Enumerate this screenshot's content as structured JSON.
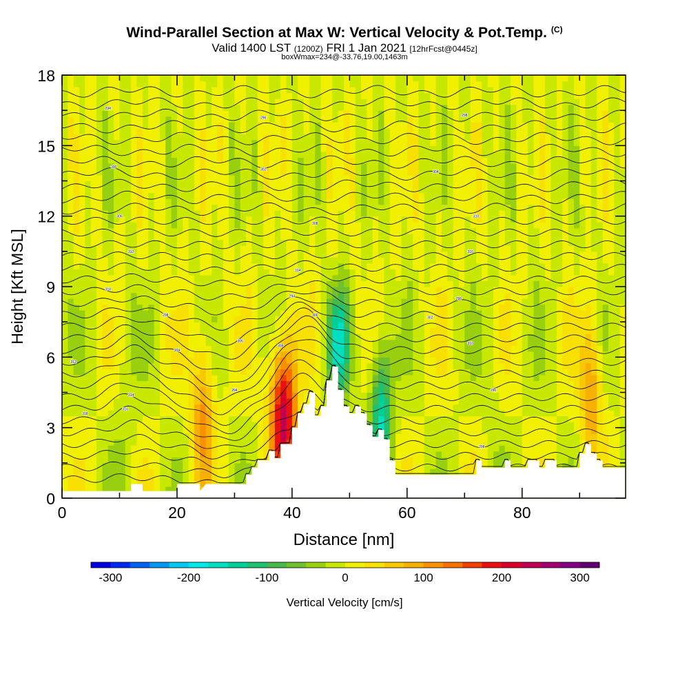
{
  "chart_data": {
    "type": "heatmap",
    "title": "Wind-Parallel Section at Max W: Vertical Velocity & Pot.Temp.",
    "title_mark": "(C)",
    "subtitle_main": "Valid 1400 LST",
    "subtitle_utc": "(1200Z)",
    "subtitle_date": "FRI 1 Jan 2021",
    "subtitle_fcst": "[12hrFcst@0445z]",
    "subtitle2": "boxWmax=234@-33.76,19.00,1463m",
    "xlabel": "Distance [nm]",
    "ylabel": "Height [Kft MSL]",
    "xlim": [
      0,
      98
    ],
    "ylim": [
      0,
      18
    ],
    "xticks": [
      0,
      20,
      40,
      60,
      80
    ],
    "yticks": [
      0,
      3,
      6,
      9,
      12,
      15,
      18
    ],
    "colorbar": {
      "label": "Vertical Velocity [cm/s]",
      "range": [
        -325,
        325
      ],
      "ticks": [
        -300,
        -200,
        -100,
        0,
        100,
        200,
        300
      ],
      "colors": [
        "#0000e0",
        "#0028f0",
        "#0060f0",
        "#0098f0",
        "#00c8f0",
        "#00e8e8",
        "#00e0c0",
        "#00d098",
        "#20c070",
        "#48b848",
        "#70c030",
        "#98d010",
        "#c8e800",
        "#f0f000",
        "#f8e000",
        "#f8c800",
        "#f8b000",
        "#f89000",
        "#f87000",
        "#f04000",
        "#e81010",
        "#d80028",
        "#c00050",
        "#a00070",
        "#800080",
        "#600070"
      ]
    },
    "series": [
      {
        "name": "updraft core",
        "x": 38.5,
        "height_kft": 3.5,
        "w_cms": 234
      },
      {
        "name": "updraft",
        "x": 24.5,
        "height_kft": 3.5,
        "w_cms": 110
      },
      {
        "name": "updraft",
        "x": 92,
        "height_kft": 4.5,
        "w_cms": 100
      },
      {
        "name": "downdraft",
        "x": 48,
        "height_kft": 6.5,
        "w_cms": -150
      },
      {
        "name": "downdraft",
        "x": 55.5,
        "height_kft": 3.5,
        "w_cms": -150
      }
    ],
    "terrain_kft": [
      [
        0,
        0.3
      ],
      [
        12,
        0.3
      ],
      [
        12,
        0.6
      ],
      [
        14,
        0.6
      ],
      [
        14,
        0.3
      ],
      [
        20,
        0.3
      ],
      [
        20,
        0.6
      ],
      [
        24,
        0.6
      ],
      [
        24,
        0.3
      ],
      [
        25,
        0.6
      ],
      [
        32,
        0.6
      ],
      [
        32,
        1.0
      ],
      [
        33,
        1.0
      ],
      [
        33,
        1.3
      ],
      [
        34,
        1.3
      ],
      [
        34,
        1.6
      ],
      [
        36,
        1.6
      ],
      [
        36,
        2.0
      ],
      [
        37,
        2.0
      ],
      [
        37,
        1.7
      ],
      [
        38,
        1.7
      ],
      [
        38,
        2.3
      ],
      [
        40,
        2.3
      ],
      [
        40,
        3.0
      ],
      [
        41,
        3.0
      ],
      [
        41,
        3.6
      ],
      [
        42,
        3.6
      ],
      [
        42,
        4.0
      ],
      [
        43,
        4.0
      ],
      [
        43,
        4.5
      ],
      [
        44,
        4.5
      ],
      [
        44,
        3.5
      ],
      [
        45,
        3.5
      ],
      [
        45,
        3.9
      ],
      [
        46,
        3.9
      ],
      [
        46,
        5.0
      ],
      [
        47,
        5.0
      ],
      [
        47,
        5.6
      ],
      [
        48,
        5.6
      ],
      [
        48,
        4.6
      ],
      [
        49,
        4.6
      ],
      [
        49,
        3.9
      ],
      [
        50,
        3.9
      ],
      [
        50,
        3.6
      ],
      [
        51,
        3.6
      ],
      [
        51,
        3.9
      ],
      [
        52,
        3.9
      ],
      [
        52,
        3.6
      ],
      [
        53,
        3.6
      ],
      [
        53,
        3.1
      ],
      [
        54,
        3.1
      ],
      [
        54,
        2.6
      ],
      [
        55,
        2.6
      ],
      [
        55,
        2.9
      ],
      [
        56,
        2.9
      ],
      [
        56,
        2.5
      ],
      [
        57,
        2.5
      ],
      [
        57,
        1.6
      ],
      [
        58,
        1.6
      ],
      [
        58,
        1.0
      ],
      [
        72,
        1.0
      ],
      [
        72,
        1.6
      ],
      [
        73,
        1.6
      ],
      [
        73,
        1.3
      ],
      [
        77,
        1.3
      ],
      [
        77,
        1.6
      ],
      [
        78,
        1.6
      ],
      [
        78,
        1.3
      ],
      [
        81,
        1.3
      ],
      [
        81,
        1.6
      ],
      [
        83,
        1.6
      ],
      [
        83,
        1.3
      ],
      [
        84,
        1.3
      ],
      [
        84,
        1.6
      ],
      [
        86,
        1.6
      ],
      [
        86,
        1.3
      ],
      [
        90,
        1.3
      ],
      [
        90,
        1.9
      ],
      [
        91,
        1.9
      ],
      [
        91,
        2.3
      ],
      [
        92,
        2.3
      ],
      [
        92,
        1.9
      ],
      [
        93,
        1.9
      ],
      [
        93,
        1.6
      ],
      [
        94,
        1.6
      ],
      [
        94,
        1.3
      ],
      [
        98,
        1.3
      ]
    ],
    "contour_labels": [
      "294",
      "296",
      "298",
      "300",
      "302",
      "304",
      "306",
      "308",
      "310",
      "312",
      "314",
      "316",
      "318"
    ]
  }
}
